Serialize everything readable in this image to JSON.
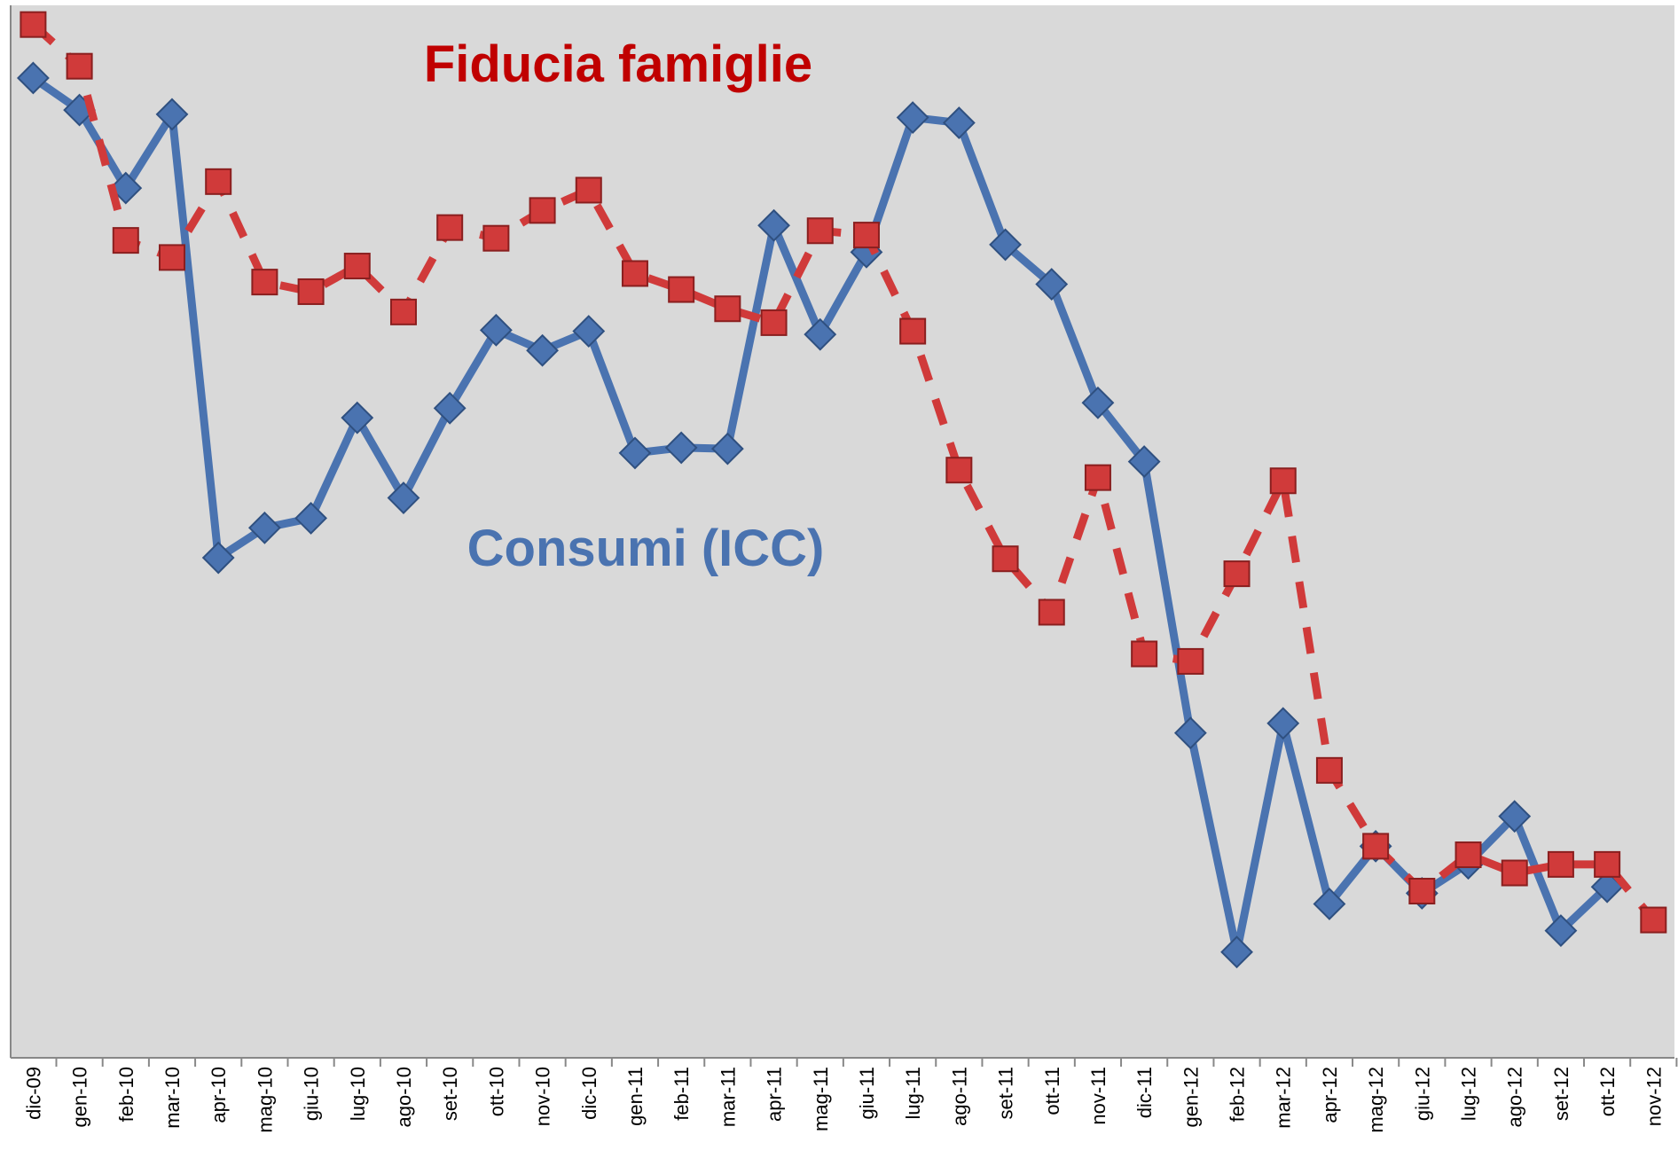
{
  "chart_data": {
    "type": "line",
    "categories": [
      "dic-09",
      "gen-10",
      "feb-10",
      "mar-10",
      "apr-10",
      "mag-10",
      "giu-10",
      "lug-10",
      "ago-10",
      "set-10",
      "ott-10",
      "nov-10",
      "dic-10",
      "gen-11",
      "feb-11",
      "mar-11",
      "apr-11",
      "mag-11",
      "giu-11",
      "lug-11",
      "ago-11",
      "set-11",
      "ott-11",
      "nov-11",
      "dic-11",
      "gen-12",
      "feb-12",
      "mar-12",
      "apr-12",
      "mag-12",
      "giu-12",
      "lug-12",
      "ago-12",
      "set-12",
      "ott-12",
      "nov-12"
    ],
    "series": [
      {
        "name": "Consumi (ICC)",
        "color": "#4a73b0",
        "marker": "diamond",
        "dashed": false,
        "values": [
          917,
          887,
          814,
          883,
          468,
          496,
          505,
          599,
          524,
          608,
          681,
          662,
          680,
          566,
          571,
          570,
          779,
          677,
          754,
          880,
          875,
          761,
          724,
          613,
          558,
          304,
          99,
          313,
          144,
          198,
          154,
          182,
          226,
          119,
          160,
          null
        ]
      },
      {
        "name": "Fiducia famiglie",
        "color": "#d03a3a",
        "marker": "square",
        "dashed": true,
        "values": [
          967,
          928,
          765,
          749,
          820,
          726,
          717,
          741,
          698,
          777,
          767,
          793,
          812,
          734,
          719,
          701,
          688,
          774,
          770,
          680,
          550,
          467,
          417,
          543,
          378,
          371,
          453,
          540,
          269,
          198,
          156,
          190,
          173,
          181,
          181,
          129
        ]
      }
    ],
    "ylim": [
      0,
      985
    ]
  }
}
